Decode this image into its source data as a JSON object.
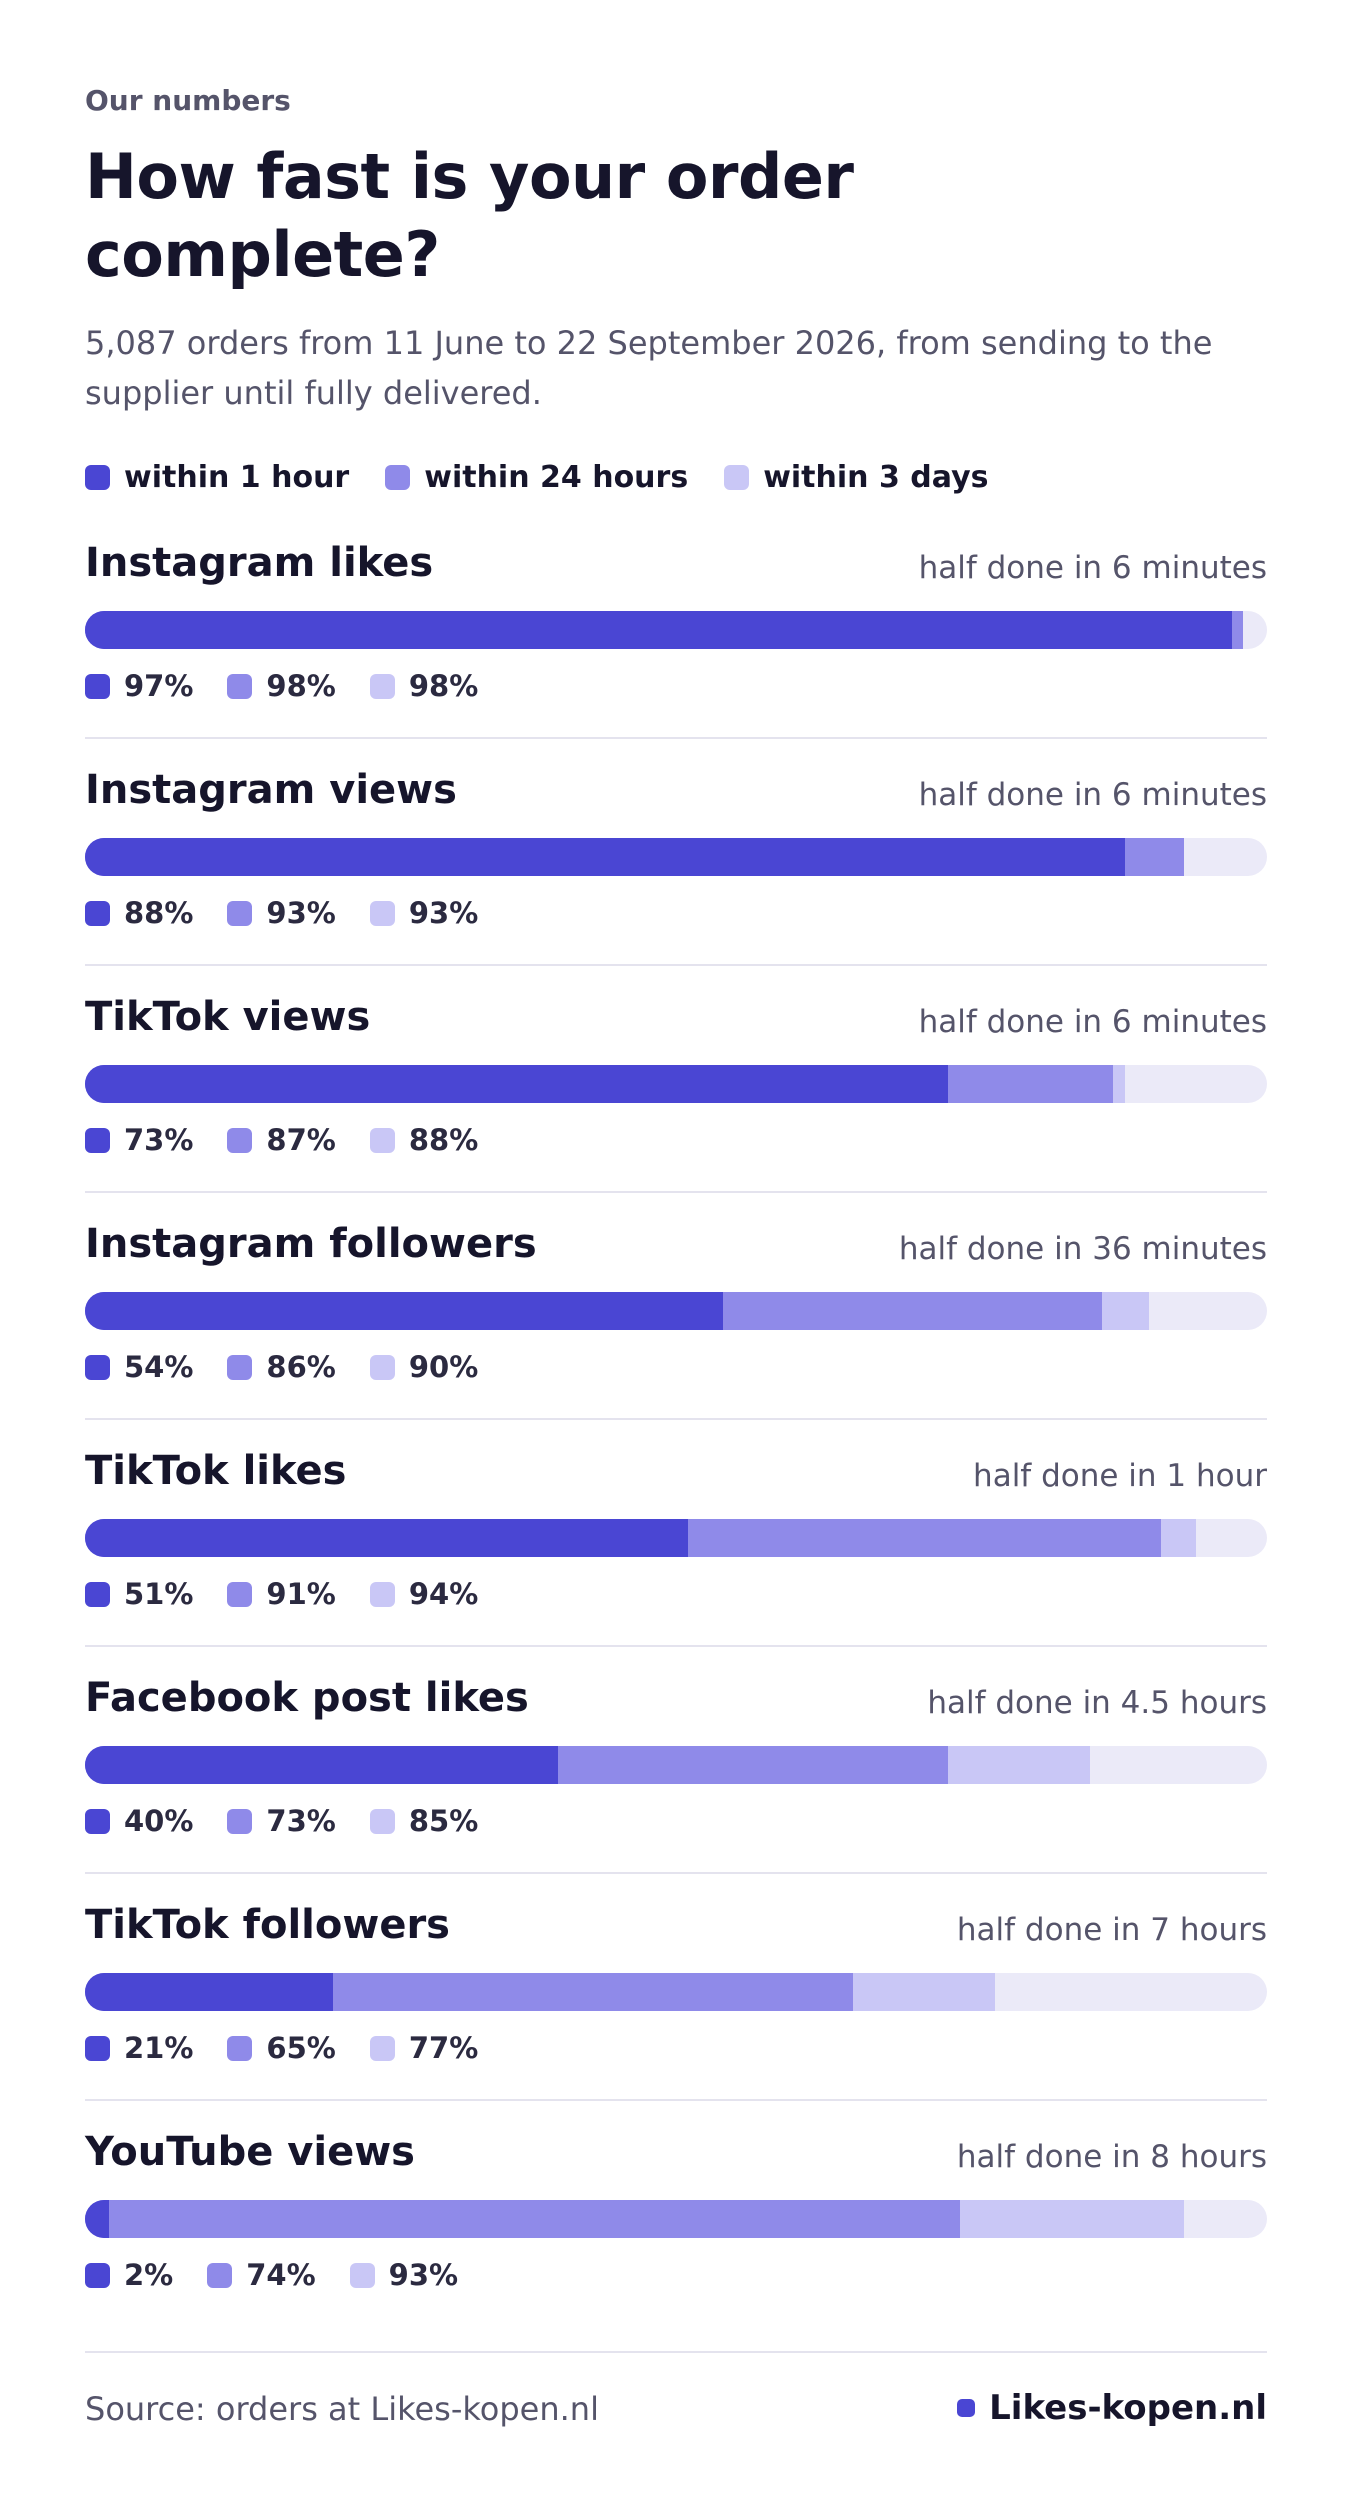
{
  "chart_data": {
    "type": "bar",
    "eyebrow": "Our numbers",
    "title": "How fast is your order complete?",
    "subtitle": "5,087 orders from 11 June to 22 September 2026, from sending to the supplier until fully delivered.",
    "categories": [
      "Instagram likes",
      "Instagram views",
      "TikTok views",
      "Instagram followers",
      "TikTok likes",
      "Facebook post likes",
      "TikTok followers",
      "YouTube views"
    ],
    "annotations": [
      "half done in 6 minutes",
      "half done in 6 minutes",
      "half done in 6 minutes",
      "half done in 36 minutes",
      "half done in 1 hour",
      "half done in 4.5 hours",
      "half done in 7 hours",
      "half done in 8 hours"
    ],
    "series": [
      {
        "name": "within 1 hour",
        "color": "#4a46d3",
        "values": [
          97,
          88,
          73,
          54,
          51,
          40,
          21,
          2
        ],
        "value_labels": [
          "97%",
          "88%",
          "73%",
          "54%",
          "51%",
          "40%",
          "21%",
          "2%"
        ]
      },
      {
        "name": "within 24 hours",
        "color": "#8f8ae9",
        "values": [
          98,
          93,
          87,
          86,
          91,
          73,
          65,
          74
        ],
        "value_labels": [
          "98%",
          "93%",
          "87%",
          "86%",
          "91%",
          "73%",
          "65%",
          "74%"
        ]
      },
      {
        "name": "within 3 days",
        "color": "#c9c7f6",
        "values": [
          98,
          93,
          88,
          90,
          94,
          85,
          77,
          93
        ],
        "value_labels": [
          "98%",
          "93%",
          "88%",
          "90%",
          "94%",
          "85%",
          "77%",
          "93%"
        ]
      }
    ],
    "xlim": [
      0,
      100
    ],
    "track_color": "#ebeaf8",
    "source": "Source: orders at Likes-kopen.nl",
    "brand": "Likes-kopen.nl"
  }
}
